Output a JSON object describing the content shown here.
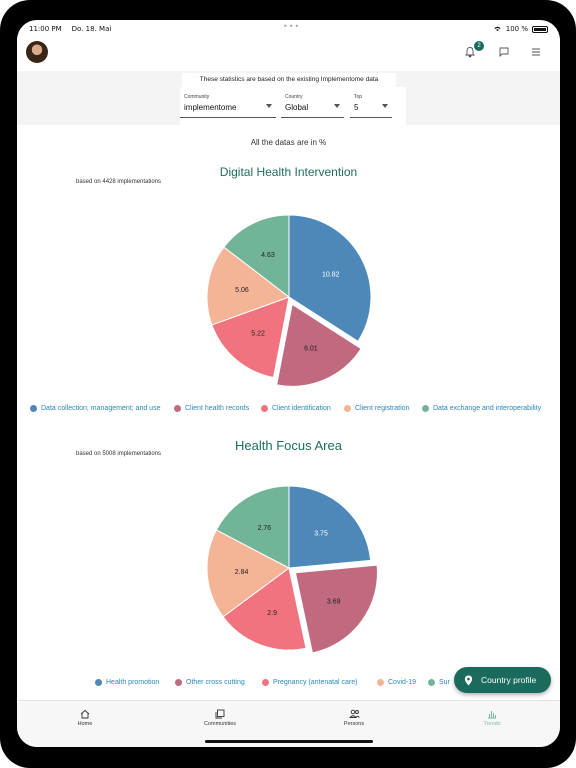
{
  "statusbar": {
    "time": "11:00 PM",
    "date": "Do. 18. Mai",
    "battery": "100 %"
  },
  "appbar": {
    "notification_count": "2"
  },
  "filters": {
    "notice": "These statistics are based on the existing Implementome data",
    "community_label": "Community",
    "community_value": "implementome",
    "country_label": "Country",
    "country_value": "Global",
    "top_label": "Top",
    "top_value": "5"
  },
  "content": {
    "all_datas": "All the datas are in %"
  },
  "colors": {
    "blue": "#4e88b9",
    "mauve": "#c0697f",
    "pink": "#f27380",
    "peach": "#f6b497",
    "green": "#72b497",
    "accent": "#1a6b5c"
  },
  "chart_data": [
    {
      "type": "pie",
      "title": "Digital Health Intervention",
      "subtitle": "based on 4428 implementations",
      "categories": [
        "Data collection; management; and use",
        "Client health records",
        "Client identification",
        "Client registration",
        "Data exchange and interoperability"
      ],
      "values": [
        10.82,
        6.01,
        5.22,
        5.06,
        4.63
      ],
      "exploded_index": 1,
      "legend": "bottom"
    },
    {
      "type": "pie",
      "title": "Health Focus Area",
      "subtitle": "based on 5008 implementations",
      "categories": [
        "Health promotion",
        "Other cross cutting",
        "Pregnancy (antenatal care)",
        "Covid-19",
        "Sur"
      ],
      "values": [
        3.75,
        3.69,
        2.9,
        2.84,
        2.76
      ],
      "exploded_index": 1,
      "legend": "bottom"
    }
  ],
  "fab": {
    "label": "Country profile"
  },
  "nav": {
    "home": "Home",
    "communities": "Communities",
    "persons": "Persons",
    "trends": "Trends"
  }
}
